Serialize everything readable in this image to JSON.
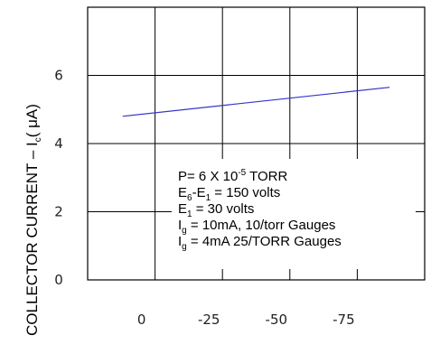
{
  "chart_data": {
    "type": "line",
    "ylabel_main": "COLLECTOR CURRENT – I",
    "ylabel_sub": "c",
    "ylabel_unit": "( μA)",
    "ylim": [
      0,
      8
    ],
    "yticks": [
      0,
      2,
      4,
      6
    ],
    "ytick_labels": [
      "0",
      "2",
      "4",
      "6"
    ],
    "xticks": [
      0,
      -25,
      -50,
      -75
    ],
    "xtick_labels": [
      "0",
      "-25",
      "-50",
      "-75"
    ],
    "xlim": [
      25,
      -100
    ],
    "grid": true,
    "series": [
      {
        "x": [
          12,
          -87
        ],
        "y": [
          4.8,
          5.65
        ],
        "color": "#3333cc"
      }
    ],
    "annotations": [
      [
        {
          "t": "P= 6 X 10"
        },
        {
          "t": "-5",
          "s": "sup"
        },
        {
          "t": " TORR"
        }
      ],
      [
        {
          "t": "E"
        },
        {
          "t": "6",
          "s": "sub"
        },
        {
          "t": "-E"
        },
        {
          "t": "1",
          "s": "sub"
        },
        {
          "t": " = 150 volts"
        }
      ],
      [
        {
          "t": "E"
        },
        {
          "t": "1",
          "s": "sub"
        },
        {
          "t": " = 30 volts"
        }
      ],
      [
        {
          "t": "I"
        },
        {
          "t": "g",
          "s": "sub"
        },
        {
          "t": " = 10mA, 10/torr Gauges"
        }
      ],
      [
        {
          "t": "I"
        },
        {
          "t": "g",
          "s": "sub"
        },
        {
          "t": " = 4mA 25/TORR Gauges"
        }
      ]
    ]
  }
}
